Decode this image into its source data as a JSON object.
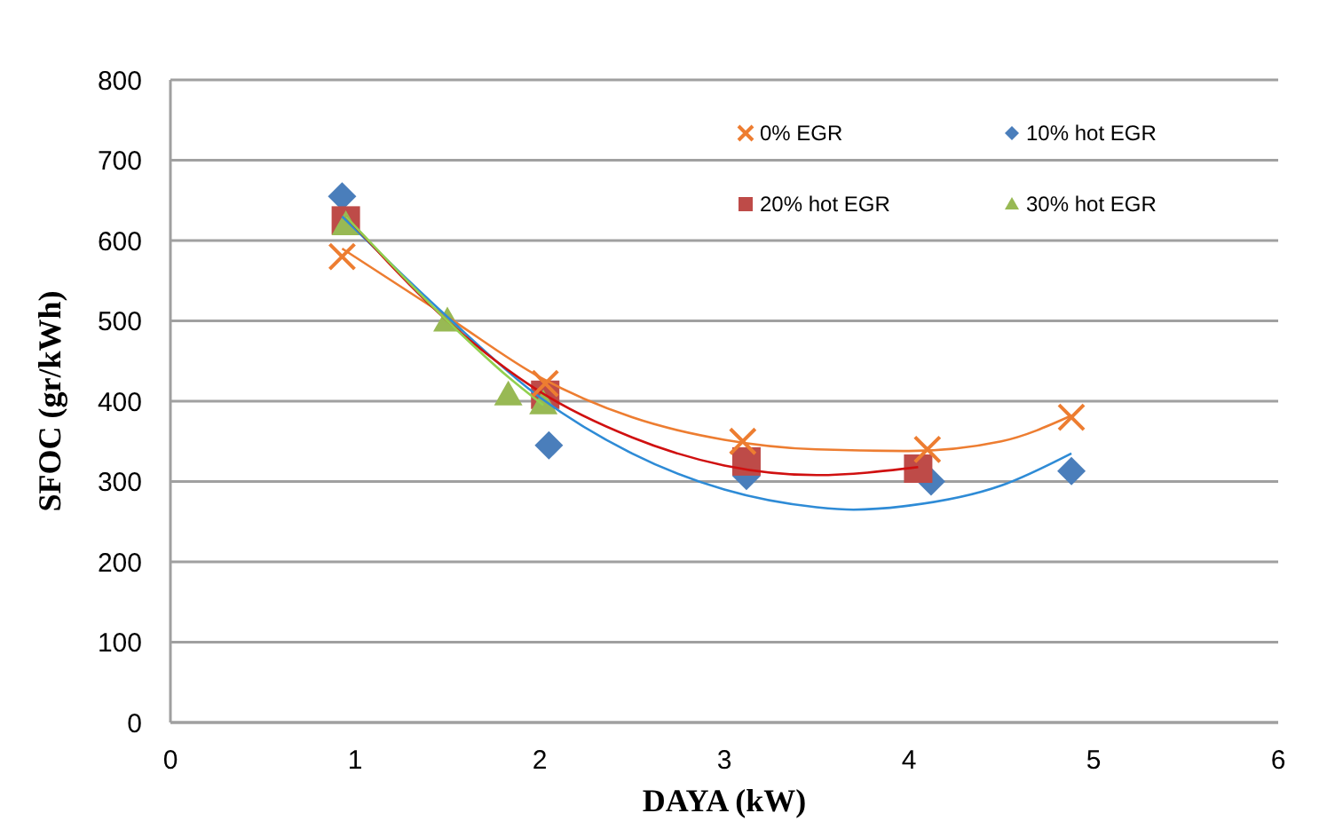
{
  "chart_data": {
    "type": "scatter",
    "xlabel": "DAYA  (kW)",
    "ylabel": "SFOC (gr/kWh)",
    "xlim": [
      0,
      6
    ],
    "xticks": [
      0,
      1,
      2,
      3,
      4,
      5,
      6
    ],
    "ylim": [
      0,
      800
    ],
    "yticks": [
      0,
      100,
      200,
      300,
      400,
      500,
      600,
      700,
      800
    ],
    "grid": "y",
    "legend": "top right",
    "series": [
      {
        "name": "0% EGR",
        "color": "#ed7d31",
        "marker": "cross",
        "x": [
          0.93,
          2.03,
          3.1,
          4.1,
          4.88
        ],
        "values": [
          580,
          422,
          350,
          340,
          380
        ]
      },
      {
        "name": "10% hot EGR",
        "color": "#4a7ebb",
        "marker": "diamond",
        "x": [
          0.93,
          2.05,
          3.12,
          4.12,
          4.88
        ],
        "values": [
          655,
          345,
          307,
          300,
          313
        ]
      },
      {
        "name": "20% hot EGR",
        "color": "#be4b48",
        "marker": "square",
        "x": [
          0.95,
          2.03,
          3.12,
          4.05
        ],
        "values": [
          625,
          408,
          325,
          316
        ]
      },
      {
        "name": "30% hot EGR",
        "color": "#98b954",
        "marker": "triangle",
        "x": [
          0.95,
          1.5,
          1.83,
          2.02
        ],
        "values": [
          620,
          500,
          408,
          397
        ]
      },
      {
        "type": "line",
        "color": "#ed7d31",
        "x": [
          0.93,
          1.5,
          2.0,
          2.5,
          3.0,
          3.5,
          4.0,
          4.5,
          4.88
        ],
        "values": [
          590,
          505,
          430,
          380,
          352,
          340,
          338,
          350,
          382
        ]
      },
      {
        "type": "line",
        "color": "#2e8bd6",
        "x": [
          0.93,
          1.5,
          2.0,
          2.5,
          3.0,
          3.5,
          3.7,
          4.0,
          4.5,
          4.88
        ],
        "values": [
          630,
          505,
          405,
          335,
          290,
          268,
          265,
          270,
          295,
          335
        ]
      },
      {
        "type": "line",
        "color": "#d01010",
        "x": [
          0.95,
          1.5,
          2.0,
          2.5,
          3.0,
          3.5,
          4.05
        ],
        "values": [
          630,
          500,
          412,
          355,
          320,
          308,
          318
        ]
      },
      {
        "type": "line",
        "color": "#92d050",
        "x": [
          0.95,
          1.5,
          1.83,
          2.02
        ],
        "values": [
          630,
          500,
          430,
          395
        ]
      }
    ]
  }
}
